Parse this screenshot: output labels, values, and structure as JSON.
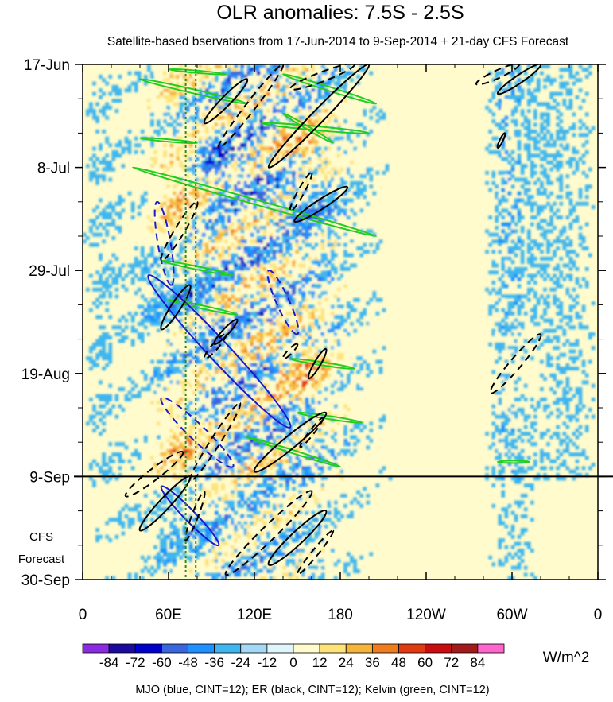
{
  "chart_data": {
    "type": "heatmap",
    "title": "OLR anomalies: 7.5S - 2.5S",
    "subtitle": "Satellite-based bservations from 17-Jun-2014 to 9-Sep-2014 + 21-day CFS Forecast",
    "xlabel": "",
    "ylabel": "",
    "x_ticks": [
      {
        "label": "0",
        "lon": 0
      },
      {
        "label": "60E",
        "lon": 60
      },
      {
        "label": "120E",
        "lon": 120
      },
      {
        "label": "180",
        "lon": 180
      },
      {
        "label": "120W",
        "lon": 240
      },
      {
        "label": "60W",
        "lon": 300
      },
      {
        "label": "0",
        "lon": 360
      }
    ],
    "y_ticks": [
      {
        "label": "17-Jun",
        "day": 0
      },
      {
        "label": "8-Jul",
        "day": 21
      },
      {
        "label": "29-Jul",
        "day": 42
      },
      {
        "label": "19-Aug",
        "day": 63
      },
      {
        "label": "9-Sep",
        "day": 84
      },
      {
        "label": "30-Sep",
        "day": 105
      }
    ],
    "xlim": [
      0,
      360
    ],
    "ylim_days": [
      0,
      105
    ],
    "forecast_start_day": 84,
    "forecast_label": [
      "CFS",
      "Forecast"
    ],
    "reference_lines_lon": [
      72,
      79
    ],
    "colorbar": {
      "labels": [
        "-84",
        "-72",
        "-60",
        "-48",
        "-36",
        "-24",
        "-12",
        "0",
        "12",
        "24",
        "36",
        "48",
        "60",
        "72",
        "84"
      ],
      "colors": [
        "#8a2be2",
        "#1a0aa0",
        "#0000cd",
        "#3a66dd",
        "#1e90ff",
        "#3fb6ee",
        "#a5d8f5",
        "#dff4fb",
        "#fffbcc",
        "#fde37a",
        "#f5b53d",
        "#ef7d20",
        "#e23a10",
        "#c80c10",
        "#a31a1a",
        "#ff66cc"
      ],
      "units": "W/m^2"
    },
    "footer": "MJO (blue, CINT=12); ER (black, CINT=12); Kelvin (green, CINT=12)",
    "contour_colors": {
      "mjo": "#1a1acc",
      "er": "#000000",
      "kelvin": "#22cc22"
    },
    "mjo_contours": [
      {
        "lon1": 52,
        "day1": 28,
        "lon2": 62,
        "day2": 45,
        "w": 8,
        "dash": true
      },
      {
        "lon1": 46,
        "day1": 43,
        "lon2": 145,
        "day2": 74,
        "w": 13,
        "dash": false
      },
      {
        "lon1": 130,
        "day1": 42,
        "lon2": 150,
        "day2": 55,
        "w": 8,
        "dash": true
      },
      {
        "lon1": 55,
        "day1": 68,
        "lon2": 105,
        "day2": 82,
        "w": 10,
        "dash": true
      },
      {
        "lon1": 55,
        "day1": 86,
        "lon2": 95,
        "day2": 98,
        "w": 7,
        "dash": false
      }
    ],
    "er_contours": [
      {
        "lon1": 85,
        "day1": 12,
        "lon2": 115,
        "day2": 3,
        "w": 6,
        "dash": false
      },
      {
        "lon1": 95,
        "day1": 17,
        "lon2": 140,
        "day2": 0,
        "w": 6,
        "dash": true
      },
      {
        "lon1": 130,
        "day1": 21,
        "lon2": 200,
        "day2": 0,
        "w": 8,
        "dash": false
      },
      {
        "lon1": 145,
        "day1": 5,
        "lon2": 190,
        "day2": 0,
        "w": 6,
        "dash": true
      },
      {
        "lon1": 148,
        "day1": 32,
        "lon2": 185,
        "day2": 25,
        "w": 6,
        "dash": false
      },
      {
        "lon1": 145,
        "day1": 30,
        "lon2": 160,
        "day2": 22,
        "w": 4,
        "dash": true
      },
      {
        "lon1": 55,
        "day1": 40,
        "lon2": 80,
        "day2": 28,
        "w": 6,
        "dash": true
      },
      {
        "lon1": 55,
        "day1": 54,
        "lon2": 75,
        "day2": 45,
        "w": 6,
        "dash": false
      },
      {
        "lon1": 92,
        "day1": 57,
        "lon2": 108,
        "day2": 52,
        "w": 4,
        "dash": false
      },
      {
        "lon1": 85,
        "day1": 60,
        "lon2": 100,
        "day2": 55,
        "w": 4,
        "dash": true
      },
      {
        "lon1": 158,
        "day1": 64,
        "lon2": 170,
        "day2": 58,
        "w": 4,
        "dash": false
      },
      {
        "lon1": 140,
        "day1": 60,
        "lon2": 150,
        "day2": 57,
        "w": 3,
        "dash": true
      },
      {
        "lon1": 75,
        "day1": 85,
        "lon2": 110,
        "day2": 69,
        "w": 6,
        "dash": true
      },
      {
        "lon1": 120,
        "day1": 83,
        "lon2": 170,
        "day2": 71,
        "w": 8,
        "dash": false
      },
      {
        "lon1": 152,
        "day1": 78,
        "lon2": 168,
        "day2": 72,
        "w": 3,
        "dash": true
      },
      {
        "lon1": 30,
        "day1": 88,
        "lon2": 70,
        "day2": 79,
        "w": 7,
        "dash": true
      },
      {
        "lon1": 40,
        "day1": 95,
        "lon2": 75,
        "day2": 84,
        "w": 7,
        "dash": false
      },
      {
        "lon1": 72,
        "day1": 97,
        "lon2": 85,
        "day2": 87,
        "w": 4,
        "dash": true
      },
      {
        "lon1": 100,
        "day1": 104,
        "lon2": 160,
        "day2": 87,
        "w": 9,
        "dash": true
      },
      {
        "lon1": 130,
        "day1": 102,
        "lon2": 170,
        "day2": 91,
        "w": 8,
        "dash": false
      },
      {
        "lon1": 150,
        "day1": 104,
        "lon2": 175,
        "day2": 95,
        "w": 4,
        "dash": true
      },
      {
        "lon1": 275,
        "day1": 4,
        "lon2": 305,
        "day2": 0,
        "w": 5,
        "dash": true
      },
      {
        "lon1": 290,
        "day1": 6,
        "lon2": 320,
        "day2": 0,
        "w": 5,
        "dash": false
      },
      {
        "lon1": 290,
        "day1": 17,
        "lon2": 295,
        "day2": 14,
        "w": 2,
        "dash": false
      },
      {
        "lon1": 285,
        "day1": 67,
        "lon2": 320,
        "day2": 55,
        "w": 7,
        "dash": true
      }
    ],
    "kelvin_contours": [
      {
        "lon1": 40,
        "day1": 3,
        "lon2": 115,
        "day2": 8,
        "w": 2.5
      },
      {
        "lon1": 40,
        "day1": 15,
        "lon2": 80,
        "day2": 16,
        "w": 1.5
      },
      {
        "lon1": 60,
        "day1": 1,
        "lon2": 100,
        "day2": 2,
        "w": 1.5
      },
      {
        "lon1": 140,
        "day1": 2,
        "lon2": 205,
        "day2": 8,
        "w": 2.5
      },
      {
        "lon1": 125,
        "day1": 12,
        "lon2": 200,
        "day2": 14,
        "w": 2.5
      },
      {
        "lon1": 140,
        "day1": 10,
        "lon2": 175,
        "day2": 16,
        "w": 2
      },
      {
        "lon1": 35,
        "day1": 21,
        "lon2": 205,
        "day2": 35,
        "w": 3
      },
      {
        "lon1": 55,
        "day1": 40,
        "lon2": 105,
        "day2": 43,
        "w": 2
      },
      {
        "lon1": 60,
        "day1": 48,
        "lon2": 108,
        "day2": 51,
        "w": 2
      },
      {
        "lon1": 145,
        "day1": 60,
        "lon2": 190,
        "day2": 62,
        "w": 2
      },
      {
        "lon1": 150,
        "day1": 71,
        "lon2": 195,
        "day2": 73,
        "w": 2
      },
      {
        "lon1": 115,
        "day1": 76,
        "lon2": 180,
        "day2": 82,
        "w": 2
      },
      {
        "lon1": 290,
        "day1": 81,
        "lon2": 312,
        "day2": 81,
        "w": 1.5
      }
    ]
  }
}
